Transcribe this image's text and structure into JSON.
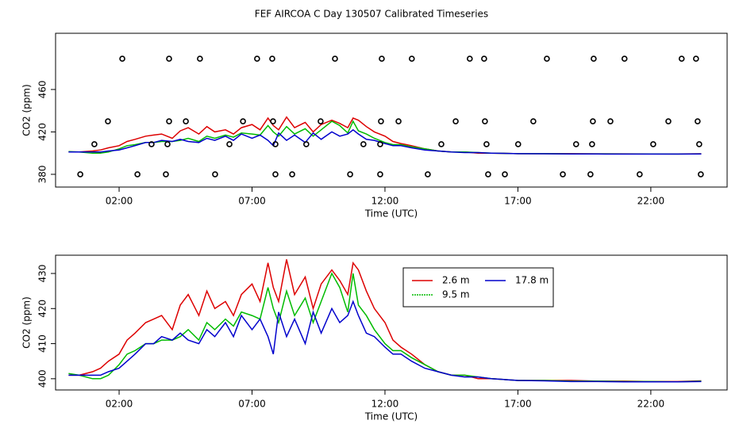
{
  "title": "FEF AIRCOA C  Day 130507  Calibrated Timeseries",
  "chart_data": [
    {
      "type": "line",
      "xlabel": "Time (UTC)",
      "ylabel": "CO2 (ppm)",
      "xlim": [
        -0.39,
        24.87
      ],
      "ylim": [
        368,
        513
      ],
      "xticks": [
        {
          "value": 2,
          "label": "02:00"
        },
        {
          "value": 7,
          "label": "07:00"
        },
        {
          "value": 12,
          "label": "12:00"
        },
        {
          "value": 17,
          "label": "17:00"
        },
        {
          "value": 22,
          "label": "22:00"
        }
      ],
      "yticks": [
        380,
        420,
        460
      ],
      "x": [
        0.1,
        0.5,
        1,
        1.3,
        1.6,
        2,
        2.3,
        2.6,
        3,
        3.3,
        3.6,
        4,
        4.3,
        4.6,
        5,
        5.3,
        5.6,
        6,
        6.3,
        6.6,
        7,
        7.3,
        7.6,
        7.8,
        8,
        8.3,
        8.6,
        9,
        9.3,
        9.6,
        10,
        10.3,
        10.6,
        10.8,
        11,
        11.3,
        11.6,
        12,
        12.3,
        12.6,
        13,
        13.5,
        14,
        14.5,
        15,
        15.5,
        16,
        17,
        18,
        19,
        20,
        21,
        22,
        23,
        23.9
      ],
      "series": [
        {
          "color": "#dd0000",
          "values": [
            401,
            401,
            402,
            403,
            405,
            407,
            411,
            413,
            416,
            417,
            418,
            414,
            421,
            424,
            418,
            425,
            420,
            422,
            418,
            424,
            427,
            422,
            433,
            426,
            422,
            434,
            424,
            429,
            420,
            427,
            431,
            428,
            424,
            433,
            431,
            425,
            420,
            416,
            411,
            409,
            407,
            404,
            402,
            401,
            401,
            400,
            400,
            399.5,
            399.5,
            399.5,
            399.3,
            399.3,
            399.2,
            399.2,
            399.4
          ]
        },
        {
          "color": "#00bb00",
          "values": [
            401.5,
            401,
            400,
            400,
            401,
            404,
            407,
            408,
            410,
            410,
            411,
            411,
            412,
            414,
            411,
            416,
            414,
            417,
            415,
            419,
            418,
            417,
            426,
            420,
            416,
            425,
            418,
            423,
            416,
            422,
            430,
            426,
            419,
            430,
            421,
            418,
            414,
            410,
            408,
            408,
            406,
            404,
            402,
            401,
            401,
            400.5,
            400,
            399.5,
            399.5,
            399.3,
            399.3,
            399.2,
            399.2,
            399.1,
            399.3
          ]
        },
        {
          "color": "#0000cc",
          "values": [
            401,
            401,
            401,
            401,
            402,
            403,
            405,
            407,
            410,
            410,
            412,
            411,
            413,
            411,
            410,
            414,
            412,
            416,
            412,
            418,
            414,
            417,
            412,
            407,
            419,
            412,
            417,
            410,
            419,
            413,
            420,
            416,
            418,
            422,
            418,
            413,
            412,
            409,
            407,
            407,
            405,
            403,
            402,
            401,
            400.5,
            400.5,
            400,
            399.5,
            399.4,
            399.2,
            399.2,
            399.1,
            399.1,
            399.1,
            399.2
          ]
        },
        {
          "type": "scatter",
          "color": "#000000",
          "x": [
            2.12,
            3.88,
            5.04,
            7.19,
            7.76,
            10.12,
            11.88,
            13.01,
            15.19,
            15.73,
            18.09,
            19.85,
            21.01,
            23.16,
            23.7,
            1.58,
            3.88,
            4.51,
            6.66,
            7.79,
            9.58,
            11.85,
            12.51,
            14.66,
            15.76,
            17.58,
            19.82,
            20.48,
            22.66,
            23.76,
            1.07,
            3.22,
            3.82,
            6.15,
            7.88,
            9.04,
            11.19,
            11.82,
            14.12,
            15.82,
            17.01,
            19.19,
            19.79,
            22.09,
            23.82,
            0.54,
            2.69,
            3.76,
            5.61,
            7.88,
            8.51,
            10.69,
            11.82,
            13.61,
            15.88,
            16.51,
            18.69,
            19.73,
            21.58,
            23.88
          ],
          "values": [
            489,
            489,
            489,
            489,
            489,
            489,
            489,
            489,
            489,
            489,
            489,
            489,
            489,
            489,
            489,
            430,
            430,
            430,
            430,
            430,
            430,
            430,
            430,
            430,
            430,
            430,
            430,
            430,
            430,
            430,
            408.4,
            408.4,
            408.4,
            408.4,
            408.4,
            408.4,
            408.4,
            408.4,
            408.4,
            408.4,
            408.4,
            408.4,
            408.4,
            408.4,
            408.4,
            380,
            380,
            380,
            380,
            380,
            380,
            380,
            380,
            380,
            380,
            380,
            380,
            380,
            380,
            380
          ]
        }
      ]
    },
    {
      "type": "line",
      "xlabel": "Time (UTC)",
      "ylabel": "CO2 (ppm)",
      "xlim": [
        -0.39,
        24.87
      ],
      "ylim": [
        396.8,
        435.2
      ],
      "xticks": [
        {
          "value": 2,
          "label": "02:00"
        },
        {
          "value": 7,
          "label": "07:00"
        },
        {
          "value": 12,
          "label": "12:00"
        },
        {
          "value": 17,
          "label": "17:00"
        },
        {
          "value": 22,
          "label": "22:00"
        }
      ],
      "yticks": [
        400,
        410,
        420,
        430
      ],
      "legend": "top",
      "x": [
        0.1,
        0.5,
        1,
        1.3,
        1.6,
        2,
        2.3,
        2.6,
        3,
        3.3,
        3.6,
        4,
        4.3,
        4.6,
        5,
        5.3,
        5.6,
        6,
        6.3,
        6.6,
        7,
        7.3,
        7.6,
        7.8,
        8,
        8.3,
        8.6,
        9,
        9.3,
        9.6,
        10,
        10.3,
        10.6,
        10.8,
        11,
        11.3,
        11.6,
        12,
        12.3,
        12.6,
        13,
        13.5,
        14,
        14.5,
        15,
        15.5,
        16,
        17,
        18,
        19,
        20,
        21,
        22,
        23,
        23.9
      ],
      "series": [
        {
          "name": "2.6 m",
          "color": "#dd0000",
          "values": [
            401,
            401,
            402,
            403,
            405,
            407,
            411,
            413,
            416,
            417,
            418,
            414,
            421,
            424,
            418,
            425,
            420,
            422,
            418,
            424,
            427,
            422,
            433,
            426,
            422,
            434,
            424,
            429,
            420,
            427,
            431,
            428,
            424,
            433,
            431,
            425,
            420,
            416,
            411,
            409,
            407,
            404,
            402,
            401,
            401,
            400,
            400,
            399.5,
            399.5,
            399.5,
            399.3,
            399.3,
            399.2,
            399.2,
            399.4
          ]
        },
        {
          "name": "9.5 m",
          "color": "#00bb00",
          "values": [
            401.5,
            401,
            400,
            400,
            401,
            404,
            407,
            408,
            410,
            410,
            411,
            411,
            412,
            414,
            411,
            416,
            414,
            417,
            415,
            419,
            418,
            417,
            426,
            420,
            416,
            425,
            418,
            423,
            416,
            422,
            430,
            426,
            419,
            430,
            421,
            418,
            414,
            410,
            408,
            408,
            406,
            404,
            402,
            401,
            401,
            400.5,
            400,
            399.5,
            399.5,
            399.3,
            399.3,
            399.2,
            399.2,
            399.1,
            399.3
          ]
        },
        {
          "name": "17.8 m",
          "color": "#0000cc",
          "values": [
            401,
            401,
            401,
            401,
            402,
            403,
            405,
            407,
            410,
            410,
            412,
            411,
            413,
            411,
            410,
            414,
            412,
            416,
            412,
            418,
            414,
            417,
            412,
            407,
            419,
            412,
            417,
            410,
            419,
            413,
            420,
            416,
            418,
            422,
            418,
            413,
            412,
            409,
            407,
            407,
            405,
            403,
            402,
            401,
            400.5,
            400.5,
            400,
            399.5,
            399.4,
            399.2,
            399.2,
            399.1,
            399.1,
            399.1,
            399.2
          ]
        }
      ]
    }
  ]
}
